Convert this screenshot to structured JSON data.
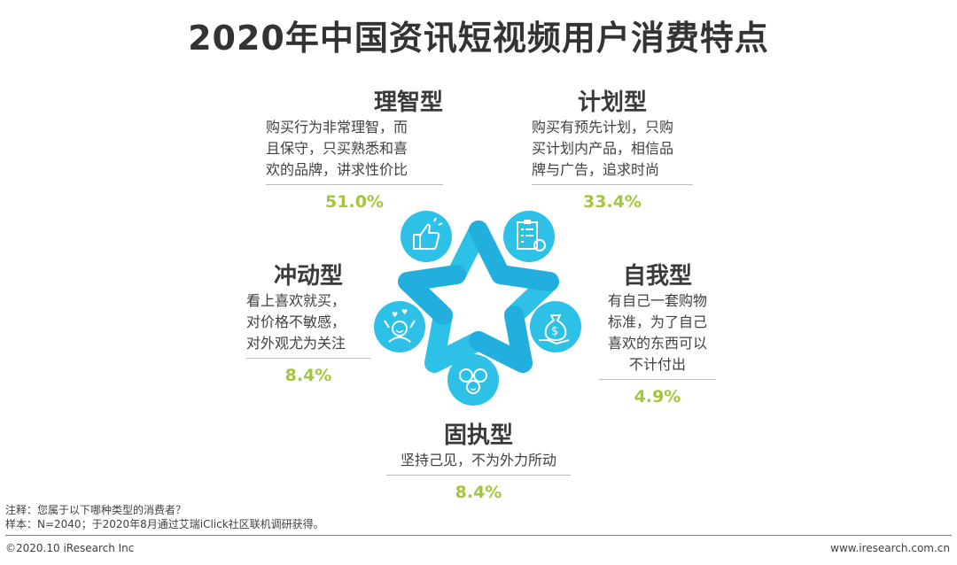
{
  "title": "2020年中国资讯短视频用户消费特点",
  "colors": {
    "accent": "#2ec1e8",
    "percent": "#a4c63a",
    "title": "#333333"
  },
  "chart_data": {
    "type": "table",
    "title": "2020年中国资讯短视频用户消费特点",
    "categories": [
      "理智型",
      "计划型",
      "冲动型",
      "自我型",
      "固执型"
    ],
    "values": [
      51.0,
      33.4,
      8.4,
      4.9,
      8.4
    ],
    "value_labels": [
      "51.0%",
      "33.4%",
      "8.4%",
      "4.9%",
      "8.4%"
    ],
    "descriptions": [
      "购买行为非常理智，而\n且保守，只买熟悉和喜\n欢的品牌，讲求性价比",
      "购买有预先计划，只购\n买计划内产品，相信品\n牌与广告，追求时尚",
      "看上喜欢就买，\n对价格不敏感，\n对外观尤为关注",
      "有自己一套购物\n标准，为了自己\n喜欢的东西可以\n不计付出",
      "坚持己见，不为外力所动"
    ],
    "icons": [
      "thumbs-up-icon",
      "checklist-icon",
      "happy-person-icon",
      "money-bag-icon",
      "people-icon"
    ]
  },
  "notes": {
    "note": "注释：您属于以下哪种类型的消费者？",
    "sample": "样本：N=2040；于2020年8月通过艾瑞iClick社区联机调研获得。"
  },
  "footer": {
    "copyright": "©2020.10 iResearch Inc",
    "url": "www.iresearch.com.cn"
  }
}
